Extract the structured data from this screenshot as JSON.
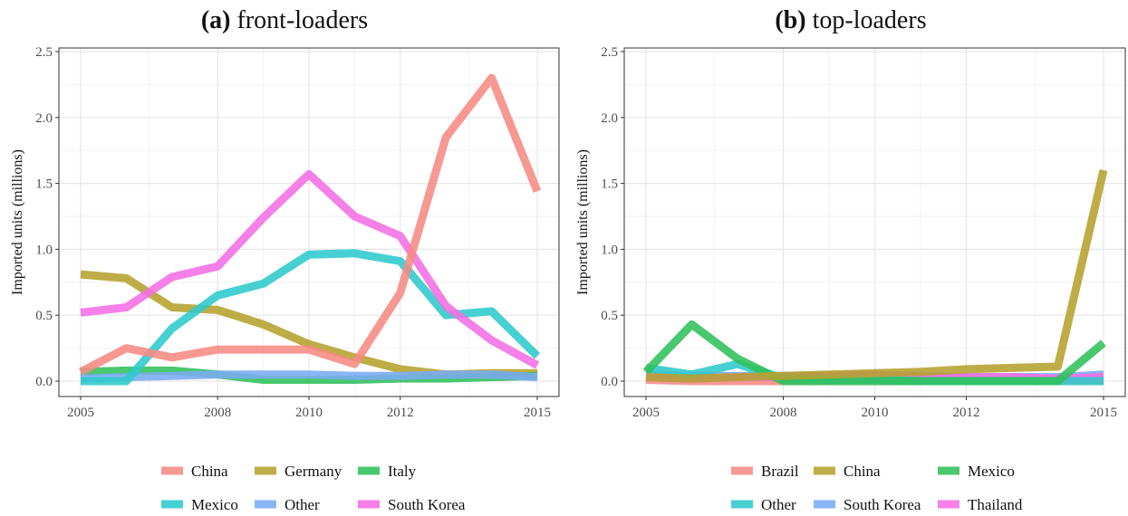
{
  "chart_data": [
    {
      "type": "line",
      "title_letter": "(a)",
      "title": "front-loaders",
      "ylabel": "Imported units (millions)",
      "xlabel": "",
      "x": [
        2005,
        2006,
        2007,
        2008,
        2009,
        2010,
        2011,
        2012,
        2013,
        2014,
        2015
      ],
      "xlim": [
        2005,
        2015
      ],
      "ylim": [
        0,
        2.5
      ],
      "x_ticks": [
        2005,
        2008,
        2010,
        2012,
        2015
      ],
      "x_tick_labels": [
        "2005",
        "2008",
        "2010",
        "2012",
        "2015"
      ],
      "y_ticks": [
        0,
        0.5,
        1.0,
        1.5,
        2.0,
        2.5
      ],
      "y_tick_labels": [
        "0.0",
        "0.5",
        "1.0",
        "1.5",
        "2.0",
        "2.5"
      ],
      "grid": true,
      "legend_position": "bottom",
      "series": [
        {
          "name": "Germany",
          "color": "#b5a22e",
          "values": [
            0.81,
            0.78,
            0.56,
            0.54,
            0.43,
            0.28,
            0.18,
            0.09,
            0.05,
            0.06,
            0.06
          ]
        },
        {
          "name": "Italy",
          "color": "#30c05b",
          "values": [
            0.07,
            0.08,
            0.08,
            0.05,
            0.01,
            0.01,
            0.01,
            0.02,
            0.02,
            0.03,
            0.04
          ]
        },
        {
          "name": "Other",
          "color": "#7aabf2",
          "values": [
            0.02,
            0.03,
            0.04,
            0.05,
            0.05,
            0.05,
            0.04,
            0.04,
            0.05,
            0.05,
            0.03
          ]
        },
        {
          "name": "Mexico",
          "color": "#2ec9cc",
          "values": [
            0.0,
            0.0,
            0.4,
            0.65,
            0.74,
            0.96,
            0.97,
            0.91,
            0.5,
            0.53,
            0.19
          ]
        },
        {
          "name": "South Korea",
          "color": "#f26ee5",
          "values": [
            0.52,
            0.56,
            0.79,
            0.87,
            1.24,
            1.57,
            1.25,
            1.1,
            0.57,
            0.31,
            0.12
          ]
        },
        {
          "name": "China",
          "color": "#f68a84",
          "values": [
            0.07,
            0.25,
            0.18,
            0.24,
            0.24,
            0.24,
            0.13,
            0.67,
            1.85,
            2.3,
            1.44
          ]
        }
      ],
      "legend_items": [
        {
          "name": "China",
          "color": "#f68a84"
        },
        {
          "name": "Germany",
          "color": "#b5a22e"
        },
        {
          "name": "Italy",
          "color": "#30c05b"
        },
        {
          "name": "Mexico",
          "color": "#2ec9cc"
        },
        {
          "name": "Other",
          "color": "#7aabf2"
        },
        {
          "name": "South Korea",
          "color": "#f26ee5"
        }
      ]
    },
    {
      "type": "line",
      "title_letter": "(b)",
      "title": "top-loaders",
      "ylabel": "Imported units (millions)",
      "xlabel": "",
      "x": [
        2005,
        2006,
        2007,
        2008,
        2009,
        2010,
        2011,
        2012,
        2013,
        2014,
        2015
      ],
      "xlim": [
        2005,
        2015
      ],
      "ylim": [
        0,
        2.5
      ],
      "x_ticks": [
        2005,
        2008,
        2010,
        2012,
        2015
      ],
      "x_tick_labels": [
        "2005",
        "2008",
        "2010",
        "2012",
        "2015"
      ],
      "y_ticks": [
        0,
        0.5,
        1.0,
        1.5,
        2.0,
        2.5
      ],
      "y_tick_labels": [
        "0.0",
        "0.5",
        "1.0",
        "1.5",
        "2.0",
        "2.5"
      ],
      "grid": true,
      "legend_position": "bottom",
      "series": [
        {
          "name": "Brazil",
          "color": "#f68a84",
          "values": [
            0.01,
            0.0,
            0.0,
            0.0,
            0.0,
            0.0,
            0.0,
            0.0,
            0.0,
            0.0,
            0.0
          ]
        },
        {
          "name": "South Korea",
          "color": "#7aabf2",
          "values": [
            0.05,
            0.04,
            0.04,
            0.04,
            0.04,
            0.04,
            0.03,
            0.03,
            0.03,
            0.03,
            0.05
          ]
        },
        {
          "name": "Thailand",
          "color": "#f26ee5",
          "values": [
            0.03,
            0.02,
            0.03,
            0.03,
            0.04,
            0.05,
            0.04,
            0.03,
            0.03,
            0.02,
            0.03
          ]
        },
        {
          "name": "Other",
          "color": "#2ec9cc",
          "values": [
            0.1,
            0.05,
            0.13,
            0.02,
            0.01,
            0.01,
            0.0,
            0.0,
            0.0,
            0.0,
            0.0
          ]
        },
        {
          "name": "Mexico",
          "color": "#30c05b",
          "values": [
            0.07,
            0.43,
            0.17,
            0.0,
            0.0,
            0.0,
            0.0,
            0.0,
            0.0,
            0.0,
            0.29
          ]
        },
        {
          "name": "China",
          "color": "#b5a22e",
          "values": [
            0.03,
            0.02,
            0.03,
            0.04,
            0.05,
            0.06,
            0.07,
            0.09,
            0.1,
            0.11,
            1.6
          ]
        }
      ],
      "legend_items": [
        {
          "name": "Brazil",
          "color": "#f68a84"
        },
        {
          "name": "China",
          "color": "#b5a22e"
        },
        {
          "name": "Mexico",
          "color": "#30c05b"
        },
        {
          "name": "Other",
          "color": "#2ec9cc"
        },
        {
          "name": "South Korea",
          "color": "#7aabf2"
        },
        {
          "name": "Thailand",
          "color": "#f26ee5"
        }
      ]
    }
  ]
}
